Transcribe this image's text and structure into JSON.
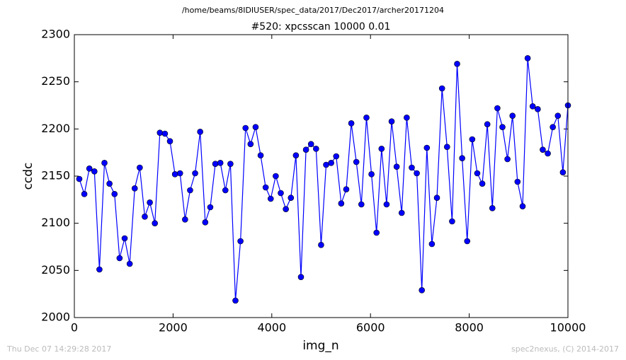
{
  "chart_data": {
    "type": "line",
    "suptitle": "/home/beams/8IDIUSER/spec_data/2017/Dec2017/archer20171204",
    "title": "#520: xpcsscan 10000 0.01",
    "xlabel": "img_n",
    "ylabel": "ccdc",
    "footer_left": "Thu Dec 07 14:29:28 2017",
    "footer_right": "spec2nexus, (C) 2014-2017",
    "xlim": [
      0,
      10000
    ],
    "ylim": [
      2000,
      2300
    ],
    "xticks": [
      0,
      2000,
      4000,
      6000,
      8000,
      10000
    ],
    "yticks": [
      2000,
      2050,
      2100,
      2150,
      2200,
      2250,
      2300
    ],
    "color": "#0000ff",
    "x": [
      100,
      202,
      304,
      406,
      508,
      610,
      712,
      814,
      916,
      1019,
      1121,
      1223,
      1325,
      1427,
      1529,
      1631,
      1733,
      1835,
      1937,
      2039,
      2141,
      2243,
      2345,
      2447,
      2549,
      2652,
      2754,
      2856,
      2958,
      3060,
      3162,
      3264,
      3366,
      3468,
      3570,
      3672,
      3774,
      3876,
      3978,
      4080,
      4182,
      4285,
      4387,
      4489,
      4591,
      4693,
      4795,
      4897,
      4999,
      5101,
      5203,
      5305,
      5407,
      5509,
      5611,
      5713,
      5815,
      5918,
      6020,
      6122,
      6224,
      6326,
      6428,
      6530,
      6632,
      6734,
      6836,
      6938,
      7040,
      7142,
      7244,
      7346,
      7449,
      7551,
      7653,
      7755,
      7857,
      7959,
      8061,
      8163,
      8265,
      8367,
      8469,
      8571,
      8673,
      8775,
      8877,
      8979,
      9082,
      9184,
      9286,
      9388,
      9490,
      9592,
      9694,
      9796,
      9898,
      10000
    ],
    "values": [
      2147,
      2131,
      2158,
      2155,
      2051,
      2164,
      2142,
      2131,
      2063,
      2084,
      2057,
      2137,
      2159,
      2107,
      2122,
      2100,
      2196,
      2195,
      2187,
      2152,
      2153,
      2104,
      2135,
      2153,
      2197,
      2101,
      2117,
      2163,
      2164,
      2135,
      2163,
      2018,
      2081,
      2201,
      2184,
      2202,
      2172,
      2138,
      2126,
      2150,
      2132,
      2115,
      2127,
      2172,
      2043,
      2178,
      2184,
      2179,
      2077,
      2162,
      2164,
      2171,
      2121,
      2136,
      2206,
      2165,
      2120,
      2212,
      2152,
      2090,
      2179,
      2120,
      2208,
      2160,
      2111,
      2212,
      2159,
      2153,
      2029,
      2180,
      2078,
      2127,
      2243,
      2181,
      2102,
      2269,
      2169,
      2081,
      2189,
      2153,
      2142,
      2205,
      2116,
      2222,
      2202,
      2168,
      2214,
      2144,
      2118,
      2275,
      2224,
      2221,
      2178,
      2174,
      2202,
      2214,
      2154,
      2225
    ]
  }
}
